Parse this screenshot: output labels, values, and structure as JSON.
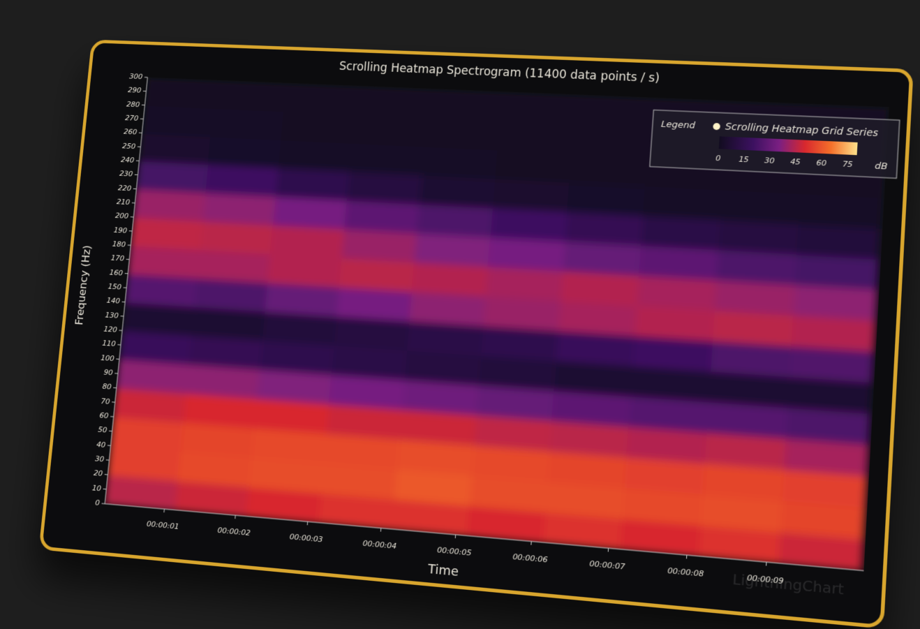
{
  "chart_data": {
    "type": "heatmap",
    "title": "Scrolling Heatmap Spectrogram (11400 data points / s)",
    "x_label": "Time",
    "y_label": "Frequency (Hz)",
    "xlim": [
      0.15,
      10.2
    ],
    "ylim": [
      0,
      300
    ],
    "xticks": [
      {
        "value": 1,
        "label": "00:00:01"
      },
      {
        "value": 2,
        "label": "00:00:02"
      },
      {
        "value": 3,
        "label": "00:00:03"
      },
      {
        "value": 4,
        "label": "00:00:04"
      },
      {
        "value": 5,
        "label": "00:00:05"
      },
      {
        "value": 6,
        "label": "00:00:06"
      },
      {
        "value": 7,
        "label": "00:00:07"
      },
      {
        "value": 8,
        "label": "00:00:08"
      },
      {
        "value": 9,
        "label": "00:00:09"
      }
    ],
    "yticks": [
      0,
      10,
      20,
      30,
      40,
      50,
      60,
      70,
      80,
      90,
      100,
      110,
      120,
      130,
      140,
      150,
      160,
      170,
      180,
      190,
      200,
      210,
      220,
      230,
      240,
      250,
      260,
      270,
      280,
      290,
      300
    ],
    "x": [
      0.65,
      1.65,
      2.65,
      3.65,
      4.65,
      5.65,
      6.65,
      7.65,
      8.65,
      9.65
    ],
    "y": [
      10,
      30,
      50,
      70,
      90,
      110,
      130,
      150,
      170,
      190,
      210,
      230,
      250,
      270,
      290
    ],
    "z": [
      [
        45,
        48,
        50,
        52,
        52,
        50,
        52,
        50,
        52,
        48
      ],
      [
        55,
        57,
        58,
        58,
        60,
        58,
        58,
        57,
        58,
        56
      ],
      [
        55,
        56,
        57,
        57,
        58,
        57,
        56,
        55,
        56,
        55
      ],
      [
        48,
        50,
        50,
        48,
        48,
        46,
        45,
        44,
        45,
        42
      ],
      [
        38,
        38,
        36,
        34,
        32,
        30,
        28,
        26,
        26,
        24
      ],
      [
        18,
        16,
        14,
        12,
        10,
        8,
        6,
        6,
        5,
        5
      ],
      [
        6,
        6,
        8,
        10,
        12,
        14,
        18,
        20,
        24,
        25
      ],
      [
        26,
        24,
        30,
        34,
        38,
        40,
        42,
        44,
        45,
        44
      ],
      [
        42,
        42,
        44,
        45,
        44,
        42,
        44,
        42,
        40,
        38
      ],
      [
        46,
        45,
        44,
        40,
        36,
        34,
        30,
        28,
        24,
        22
      ],
      [
        40,
        38,
        34,
        28,
        24,
        20,
        16,
        12,
        10,
        8
      ],
      [
        22,
        20,
        14,
        10,
        6,
        4,
        3,
        2,
        2,
        2
      ],
      [
        4,
        3,
        2,
        2,
        2,
        1,
        1,
        1,
        1,
        1
      ],
      [
        2,
        2,
        1,
        1,
        1,
        1,
        1,
        1,
        1,
        1
      ],
      [
        1,
        1,
        1,
        1,
        1,
        1,
        1,
        1,
        1,
        1
      ]
    ],
    "zlim": [
      0,
      80
    ],
    "colorscale": [
      {
        "value": 0,
        "color": "#120c20"
      },
      {
        "value": 20,
        "color": "#3c1160"
      },
      {
        "value": 35,
        "color": "#7a1f82"
      },
      {
        "value": 50,
        "color": "#d8282e"
      },
      {
        "value": 65,
        "color": "#f5702a"
      },
      {
        "value": 80,
        "color": "#fde08a"
      }
    ],
    "legend_title": "Legend",
    "series_name": "Scrolling Heatmap Grid Series",
    "series_marker_color": "#fff3c8",
    "colorbar_ticks": [
      0,
      15,
      30,
      45,
      60,
      75
    ],
    "colorbar_unit": "dB",
    "watermark": "LightningChart"
  }
}
